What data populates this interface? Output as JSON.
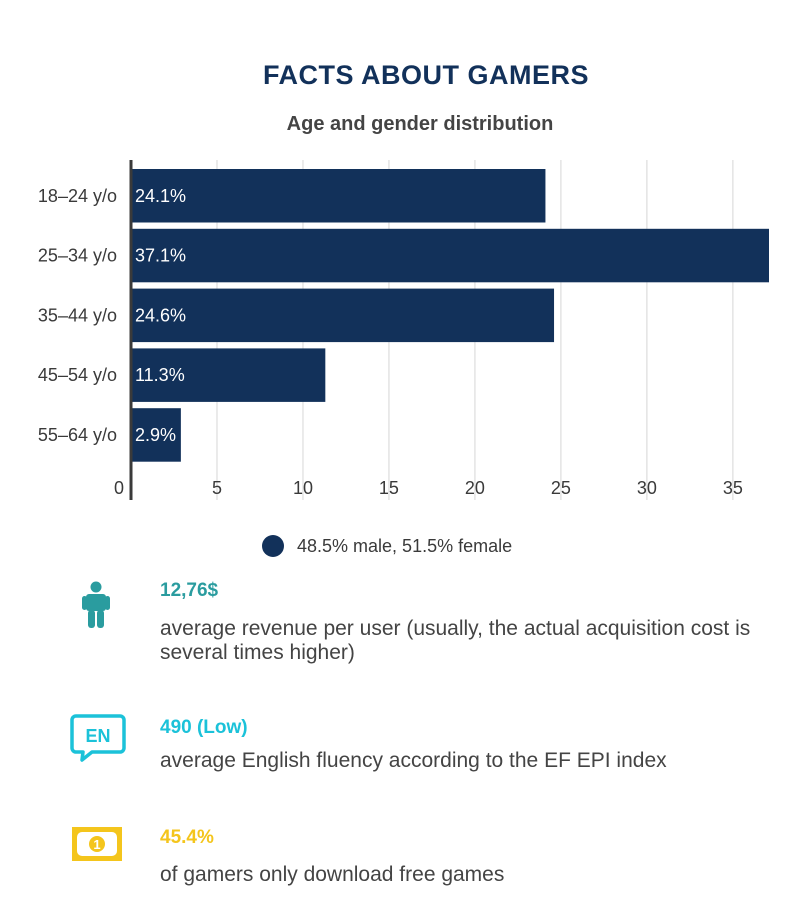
{
  "title": "FACTS ABOUT GAMERS",
  "subtitle": "Age and gender distribution",
  "legend": {
    "label": "48.5% male, 51.5% female",
    "color": "#12315a"
  },
  "chart_data": {
    "type": "bar",
    "orientation": "horizontal",
    "title": "FACTS ABOUT GAMERS",
    "subtitle": "Age and gender distribution",
    "categories": [
      "18–24 y/o",
      "25–34 y/o",
      "35–44 y/o",
      "45–54 y/o",
      "55–64 y/o"
    ],
    "values": [
      24.1,
      37.1,
      24.6,
      11.3,
      2.9
    ],
    "data_labels": [
      "24.1%",
      "37.1%",
      "24.6%",
      "11.3%",
      "2.9%"
    ],
    "xlim": [
      0,
      37.1
    ],
    "xticks": [
      0,
      5,
      10,
      15,
      20,
      25,
      30,
      35
    ],
    "grid": true,
    "legend_position": "bottom",
    "bar_color": "#12315a"
  },
  "facts": [
    {
      "icon": "person-icon",
      "value": "12,76$",
      "description": "average revenue per user (usually, the actual acquisition cost is several times higher)",
      "color": "#2a9c9f"
    },
    {
      "icon": "en-speech-bubble-icon",
      "icon_text": "EN",
      "value": "490 (Low)",
      "description": "average English fluency according to the EF EPI index",
      "color": "#1bc2d9"
    },
    {
      "icon": "banknote-icon",
      "icon_text": "1",
      "value": "45.4%",
      "description": "of gamers only download free games",
      "color": "#f4c51c"
    }
  ]
}
